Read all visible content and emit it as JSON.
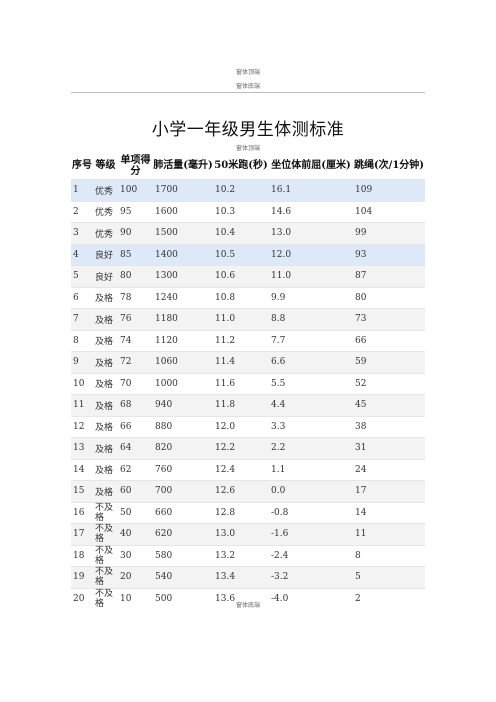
{
  "header": {
    "top": "窗体顶端",
    "mid": "窗体底端",
    "sub": "窗体顶端"
  },
  "title": "小学一年级男生体测标准",
  "table": {
    "headers": [
      "序号",
      "等级",
      "单项得分",
      "肺活量(毫升)",
      "50米跑(秒)",
      "坐位体前屈(厘米)",
      "跳绳(次/1分钟)"
    ],
    "rows": [
      [
        "1",
        "优秀",
        "100",
        "1700",
        "10.2",
        "16.1",
        "109"
      ],
      [
        "2",
        "优秀",
        "95",
        "1600",
        "10.3",
        "14.6",
        "104"
      ],
      [
        "3",
        "优秀",
        "90",
        "1500",
        "10.4",
        "13.0",
        "99"
      ],
      [
        "4",
        "良好",
        "85",
        "1400",
        "10.5",
        "12.0",
        "93"
      ],
      [
        "5",
        "良好",
        "80",
        "1300",
        "10.6",
        "11.0",
        "87"
      ],
      [
        "6",
        "及格",
        "78",
        "1240",
        "10.8",
        "9.9",
        "80"
      ],
      [
        "7",
        "及格",
        "76",
        "1180",
        "11.0",
        "8.8",
        "73"
      ],
      [
        "8",
        "及格",
        "74",
        "1120",
        "11.2",
        "7.7",
        "66"
      ],
      [
        "9",
        "及格",
        "72",
        "1060",
        "11.4",
        "6.6",
        "59"
      ],
      [
        "10",
        "及格",
        "70",
        "1000",
        "11.6",
        "5.5",
        "52"
      ],
      [
        "11",
        "及格",
        "68",
        "940",
        "11.8",
        "4.4",
        "45"
      ],
      [
        "12",
        "及格",
        "66",
        "880",
        "12.0",
        "3.3",
        "38"
      ],
      [
        "13",
        "及格",
        "64",
        "820",
        "12.2",
        "2.2",
        "31"
      ],
      [
        "14",
        "及格",
        "62",
        "760",
        "12.4",
        "1.1",
        "24"
      ],
      [
        "15",
        "及格",
        "60",
        "700",
        "12.6",
        "0.0",
        "17"
      ],
      [
        "16",
        "不及格",
        "50",
        "660",
        "12.8",
        "-0.8",
        "14"
      ],
      [
        "17",
        "不及格",
        "40",
        "620",
        "13.0",
        "-1.6",
        "11"
      ],
      [
        "18",
        "不及格",
        "30",
        "580",
        "13.2",
        "-2.4",
        "8"
      ],
      [
        "19",
        "不及格",
        "20",
        "540",
        "13.4",
        "-3.2",
        "5"
      ],
      [
        "20",
        "不及格",
        "10",
        "500",
        "13.6",
        "-4.0",
        "2"
      ]
    ],
    "highlighted_rows": [
      0,
      3
    ],
    "highlight_color": "#dde9f8"
  },
  "footer": "窗体底端"
}
